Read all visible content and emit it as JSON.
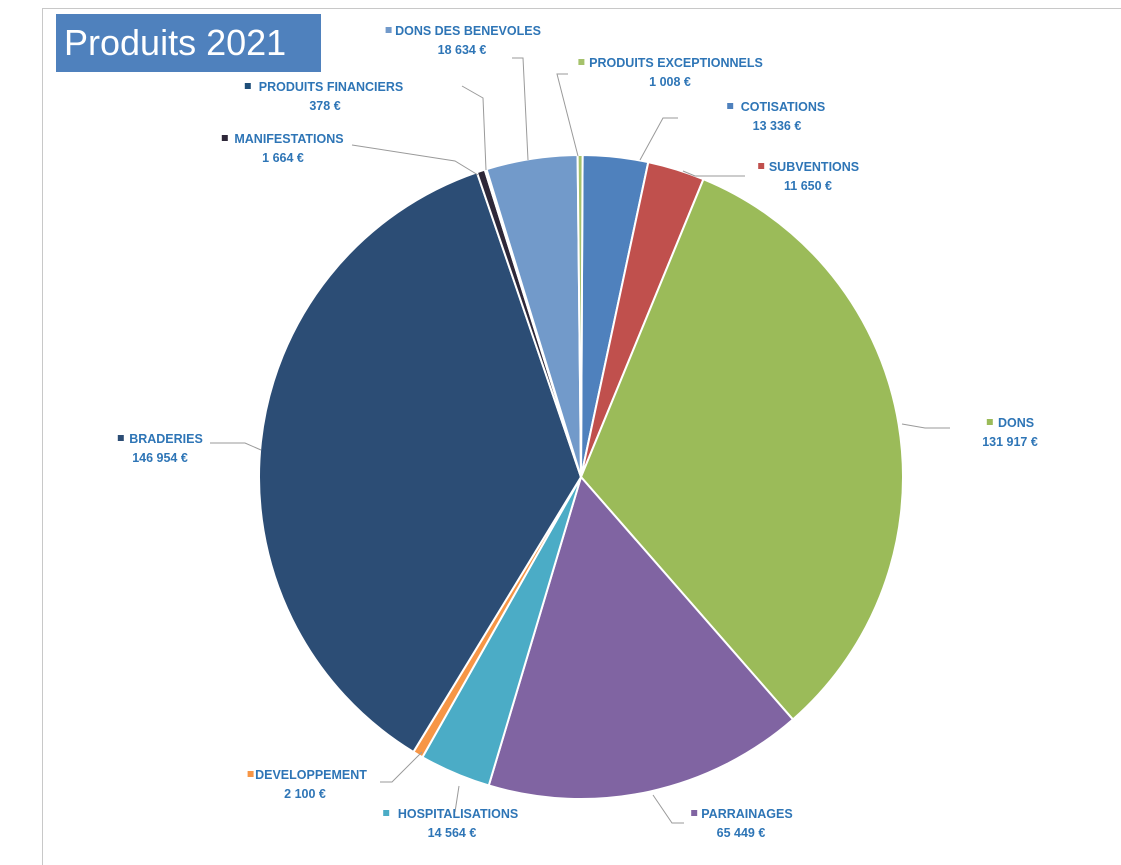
{
  "chart_data": {
    "type": "pie",
    "title": "Produits 2021",
    "slices": [
      {
        "name": "COTISATIONS",
        "value": 13336,
        "value_label": "13 336 €",
        "color": "#4f81bd"
      },
      {
        "name": "SUBVENTIONS",
        "value": 11650,
        "value_label": "11 650 €",
        "color": "#c0504d"
      },
      {
        "name": "DONS",
        "value": 131917,
        "value_label": "131 917 €",
        "color": "#9bbb59"
      },
      {
        "name": "PARRAINAGES",
        "value": 65449,
        "value_label": "65 449 €",
        "color": "#8064a2"
      },
      {
        "name": "HOSPITALISATIONS",
        "value": 14564,
        "value_label": "14 564 €",
        "color": "#4bacc6"
      },
      {
        "name": "DEVELOPPEMENT",
        "value": 2100,
        "value_label": "2 100 €",
        "color": "#f79646"
      },
      {
        "name": "BRADERIES",
        "value": 146954,
        "value_label": "146 954 €",
        "color": "#2c4d75"
      },
      {
        "name": "MANIFESTATIONS",
        "value": 1664,
        "value_label": "1 664 €",
        "color": "#2e2839"
      },
      {
        "name": "PRODUITS FINANCIERS",
        "value": 378,
        "value_label": "378 €",
        "color": "#1f4e79"
      },
      {
        "name": "DONS DES BENEVOLES",
        "value": 18634,
        "value_label": "18 634 €",
        "color": "#729aca"
      },
      {
        "name": "PRODUITS EXCEPTIONNELS",
        "value": 1008,
        "value_label": "1 008 €",
        "color": "#a5c26b"
      }
    ],
    "legend": "none"
  }
}
